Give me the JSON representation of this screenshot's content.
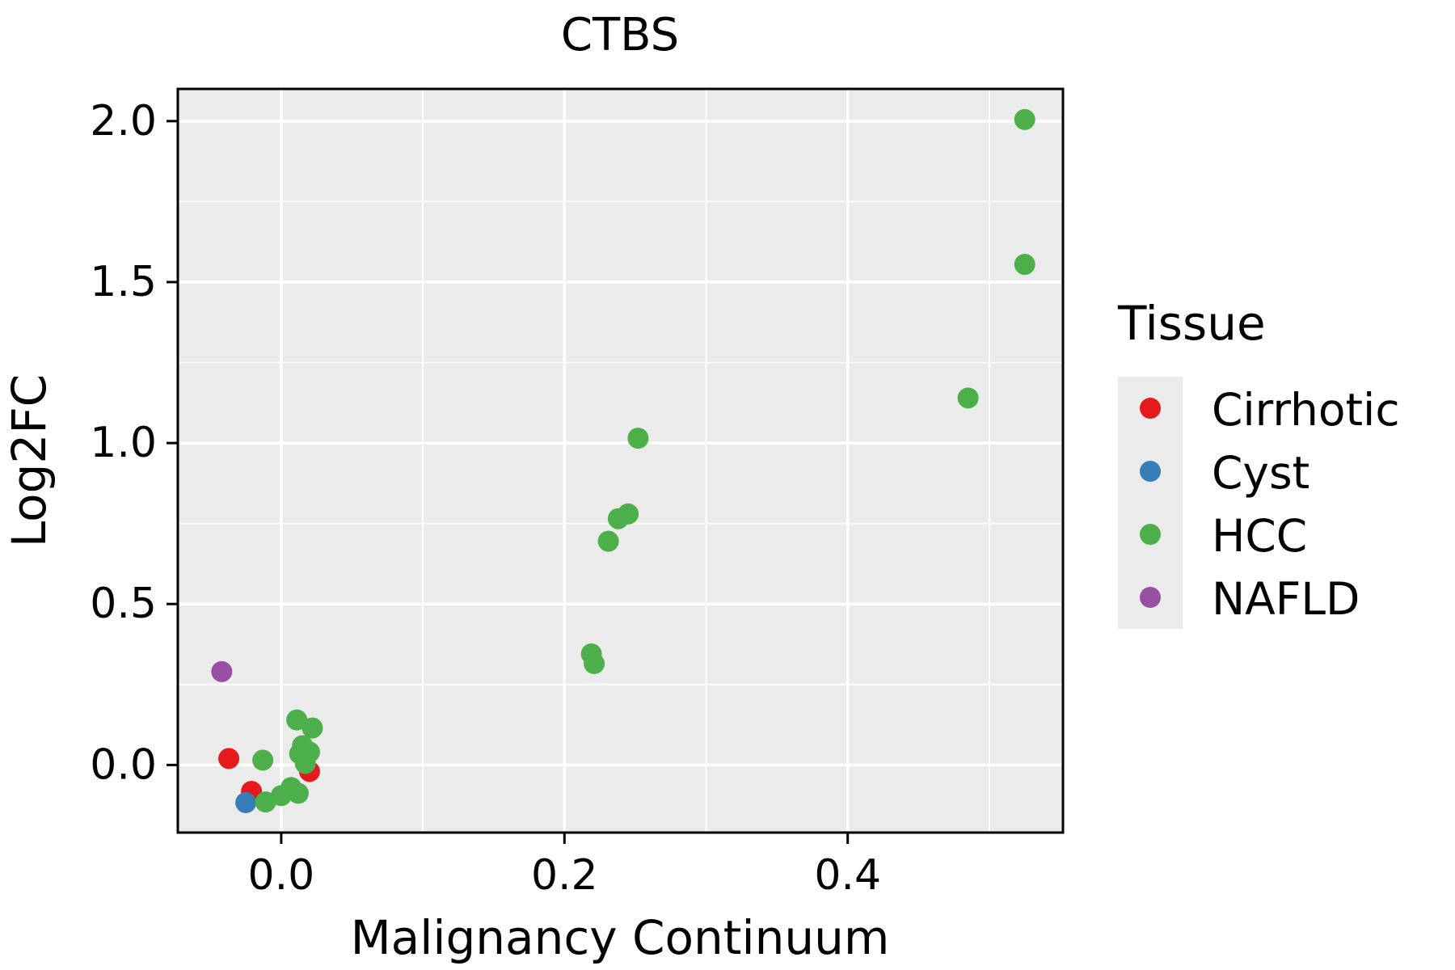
{
  "chart_data": {
    "type": "scatter",
    "title": "CTBS",
    "xlabel": "Malignancy Continuum",
    "ylabel": "Log2FC",
    "legend_title": "Tissue",
    "legend_position": "right",
    "grid": true,
    "panel_background": "#ebebeb",
    "grid_color": "#ffffff",
    "axis_color": "#000000",
    "xlim": [
      -0.073,
      0.552
    ],
    "ylim": [
      -0.21,
      2.1
    ],
    "x_ticks": [
      {
        "value": 0.0,
        "label": "0.0"
      },
      {
        "value": 0.2,
        "label": "0.2"
      },
      {
        "value": 0.4,
        "label": "0.4"
      }
    ],
    "y_ticks": [
      {
        "value": 0.0,
        "label": "0.0"
      },
      {
        "value": 0.5,
        "label": "0.5"
      },
      {
        "value": 1.0,
        "label": "1.0"
      },
      {
        "value": 1.5,
        "label": "1.5"
      },
      {
        "value": 2.0,
        "label": "2.0"
      }
    ],
    "x_minor_ticks": [
      0.1,
      0.3,
      0.5
    ],
    "y_minor_ticks": [
      0.25,
      0.75,
      1.25,
      1.75
    ],
    "point_radius": 13,
    "series": [
      {
        "name": "Cirrhotic",
        "color": "#e41a1c",
        "points": [
          [
            -0.037,
            0.02
          ],
          [
            0.02,
            -0.02
          ],
          [
            -0.021,
            -0.082
          ]
        ]
      },
      {
        "name": "Cyst",
        "color": "#377eb8",
        "points": [
          [
            -0.025,
            -0.117
          ]
        ]
      },
      {
        "name": "HCC",
        "color": "#4daf4a",
        "points": [
          [
            0.525,
            2.005
          ],
          [
            0.525,
            1.555
          ],
          [
            0.485,
            1.14
          ],
          [
            0.252,
            1.015
          ],
          [
            0.245,
            0.78
          ],
          [
            0.238,
            0.765
          ],
          [
            0.231,
            0.695
          ],
          [
            0.219,
            0.345
          ],
          [
            0.221,
            0.315
          ],
          [
            0.011,
            0.14
          ],
          [
            0.022,
            0.115
          ],
          [
            -0.013,
            0.015
          ],
          [
            0.015,
            0.06
          ],
          [
            0.02,
            0.04
          ],
          [
            0.013,
            0.035
          ],
          [
            0.017,
            0.005
          ],
          [
            0.007,
            -0.07
          ],
          [
            0.012,
            -0.088
          ],
          [
            0.0,
            -0.095
          ],
          [
            -0.011,
            -0.115
          ]
        ]
      },
      {
        "name": "NAFLD",
        "color": "#984ea3",
        "points": [
          [
            -0.042,
            0.29
          ]
        ]
      }
    ]
  }
}
